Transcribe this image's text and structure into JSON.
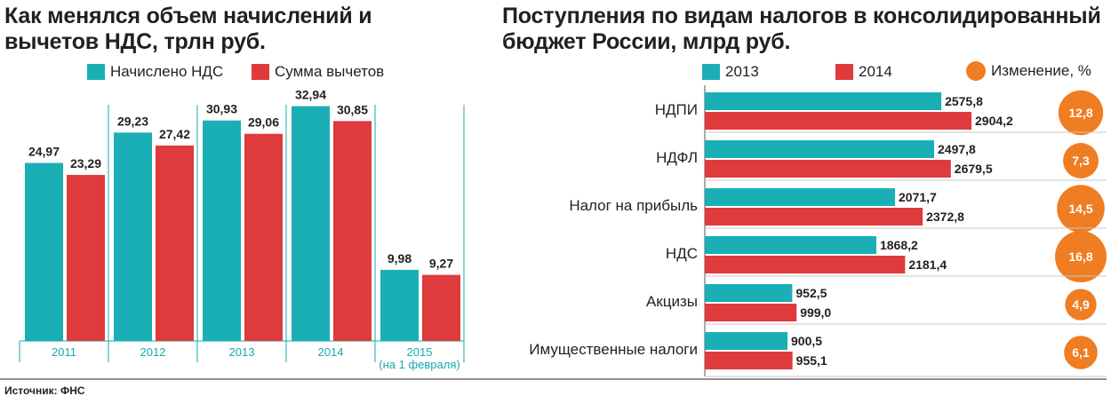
{
  "colors": {
    "teal": "#1aafb5",
    "red": "#df3a3c",
    "orange": "#ef7d22",
    "axis": "#1aa8b0",
    "grid": "#c9c9c9"
  },
  "left": {
    "title": "Как менялся объем начислений и вычетов НДС, трлн руб.",
    "legend": [
      "Начислено НДС",
      "Сумма вычетов"
    ]
  },
  "right": {
    "title": "Поступления по видам налогов в консолидированный бюджет России, млрд руб.",
    "legend": [
      "2013",
      "2014",
      "Изменение, %"
    ]
  },
  "source": "Источник: ФНС",
  "chart_data": [
    {
      "type": "bar",
      "title": "Как менялся объем начислений и вычетов НДС, трлн руб.",
      "categories": [
        "2011",
        "2012",
        "2013",
        "2014",
        "2015"
      ],
      "category_notes": [
        "",
        "",
        "",
        "",
        "(на 1 февраля)"
      ],
      "series": [
        {
          "name": "Начислено НДС",
          "values": [
            24.97,
            29.23,
            30.93,
            32.94,
            9.98
          ],
          "labels": [
            "24,97",
            "29,23",
            "30,93",
            "32,94",
            "9,98"
          ]
        },
        {
          "name": "Сумма вычетов",
          "values": [
            23.29,
            27.42,
            29.06,
            30.85,
            9.27
          ],
          "labels": [
            "23,29",
            "27,42",
            "29,06",
            "30,85",
            "9,27"
          ]
        }
      ],
      "ylim": [
        0,
        36
      ],
      "legend_position": "top",
      "grid": false
    },
    {
      "type": "bar",
      "orientation": "horizontal",
      "title": "Поступления по видам налогов в консолидированный бюджет России, млрд руб.",
      "categories": [
        "НДПИ",
        "НДФЛ",
        "Налог на прибыль",
        "НДС",
        "Акцизы",
        "Имущественные налоги"
      ],
      "series": [
        {
          "name": "2013",
          "values": [
            2575.8,
            2497.8,
            2071.7,
            1868.2,
            952.5,
            900.5
          ],
          "labels": [
            "2575,8",
            "2497,8",
            "2071,7",
            "1868,2",
            "952,5",
            "900,5"
          ]
        },
        {
          "name": "2014",
          "values": [
            2904.2,
            2679.5,
            2372.8,
            2181.4,
            999.0,
            955.1
          ],
          "labels": [
            "2904,2",
            "2679,5",
            "2372,8",
            "2181,4",
            "999,0",
            "955,1"
          ]
        }
      ],
      "change_pct": {
        "name": "Изменение, %",
        "values": [
          12.8,
          7.3,
          14.5,
          16.8,
          4.9,
          6.1
        ],
        "labels": [
          "12,8",
          "7,3",
          "14,5",
          "16,8",
          "4,9",
          "6,1"
        ]
      },
      "xlim": [
        0,
        3200
      ],
      "legend_position": "top",
      "grid": true
    }
  ]
}
